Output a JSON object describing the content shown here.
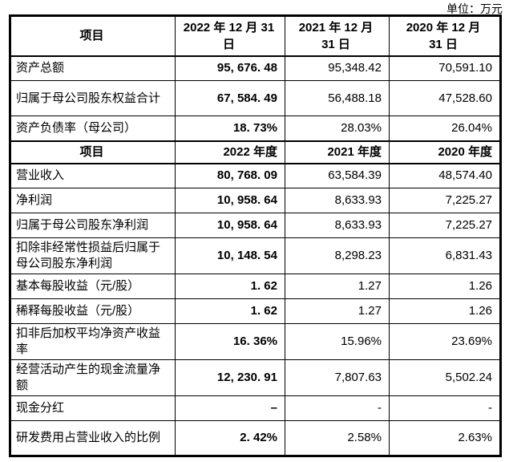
{
  "unit_label": "单位：万元",
  "table": {
    "header1": {
      "item": "项目",
      "cols": [
        {
          "line1": "2022 年 12 月 31",
          "line2": "日"
        },
        {
          "line1": "2021 年 12 月",
          "line2": "31 日"
        },
        {
          "line1": "2020 年 12 月",
          "line2": "31 日"
        }
      ]
    },
    "balance_rows": [
      {
        "label": "资产总额",
        "v2022": "95, 676. 48",
        "v2021": "95,348.42",
        "v2020": "70,591.10"
      },
      {
        "label": "归属于母公司股东权益合计",
        "v2022": "67, 584. 49",
        "v2021": "56,488.18",
        "v2020": "47,528.60"
      },
      {
        "label": "资产负债率（母公司）",
        "v2022": "18. 73%",
        "v2021": "28.03%",
        "v2020": "26.04%"
      }
    ],
    "header2": {
      "item": "项目",
      "cols": [
        "2022 年度",
        "2021 年度",
        "2020 年度"
      ]
    },
    "income_rows": [
      {
        "label": "营业收入",
        "v2022": "80, 768. 09",
        "v2021": "63,584.39",
        "v2020": "48,574.40"
      },
      {
        "label": "净利润",
        "v2022": "10, 958. 64",
        "v2021": "8,633.93",
        "v2020": "7,225.27"
      },
      {
        "label": "归属于母公司股东净利润",
        "v2022": "10, 958. 64",
        "v2021": "8,633.93",
        "v2020": "7,225.27"
      },
      {
        "label": "扣除非经常性损益后归属于母公司股东净利润",
        "v2022": "10, 148. 54",
        "v2021": "8,298.23",
        "v2020": "6,831.43"
      },
      {
        "label": "基本每股收益（元/股）",
        "v2022": "1. 62",
        "v2021": "1.27",
        "v2020": "1.26"
      },
      {
        "label": "稀释每股收益（元/股）",
        "v2022": "1. 62",
        "v2021": "1.27",
        "v2020": "1.26"
      },
      {
        "label": "扣非后加权平均净资产收益率",
        "v2022": "16. 36%",
        "v2021": "15.96%",
        "v2020": "23.69%"
      },
      {
        "label": "经营活动产生的现金流量净额",
        "v2022": "12, 230. 91",
        "v2021": "7,807.63",
        "v2020": "5,502.24"
      },
      {
        "label": "现金分红",
        "v2022": "–",
        "v2021": "-",
        "v2020": "-"
      },
      {
        "label": "研发费用占营业收入的比例",
        "v2022": "2. 42%",
        "v2021": "2.58%",
        "v2020": "2.63%"
      }
    ]
  }
}
